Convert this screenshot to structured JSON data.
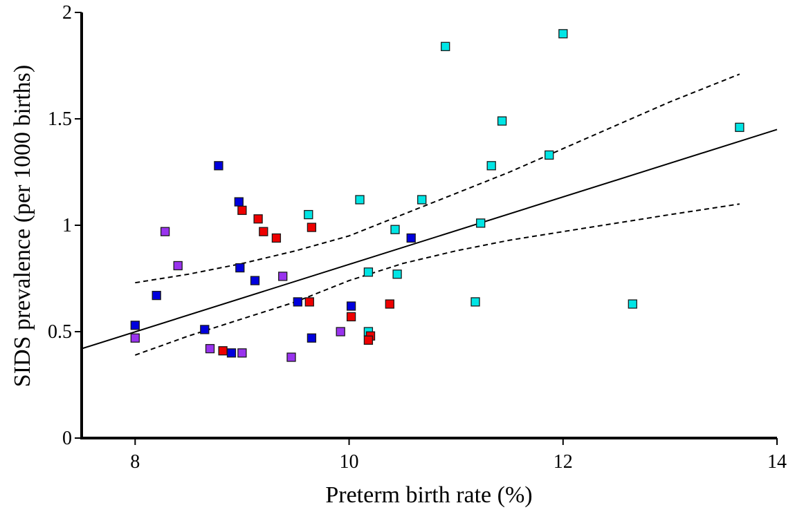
{
  "chart_data": {
    "type": "scatter",
    "title": "",
    "xlabel": "Preterm birth rate (%)",
    "ylabel": "SIDS prevalence (per 1000 births)",
    "xlim": [
      7.5,
      14
    ],
    "ylim": [
      0,
      2
    ],
    "x_ticks": [
      8,
      10,
      12,
      14
    ],
    "x_tick_labels": [
      "8",
      "10",
      "12",
      "14"
    ],
    "y_ticks": [
      0,
      0.5,
      1,
      1.5,
      2
    ],
    "y_tick_labels": [
      "0",
      "0.5",
      "1",
      "1.5",
      "2"
    ],
    "grid": false,
    "legend": "none",
    "series": [
      {
        "color": "#00e5e5",
        "points": [
          [
            10.9,
            1.84
          ],
          [
            12.0,
            1.9
          ],
          [
            11.43,
            1.49
          ],
          [
            13.65,
            1.46
          ],
          [
            11.33,
            1.28
          ],
          [
            11.87,
            1.33
          ],
          [
            10.1,
            1.12
          ],
          [
            10.68,
            1.12
          ],
          [
            9.62,
            1.05
          ],
          [
            11.23,
            1.01
          ],
          [
            10.43,
            0.98
          ],
          [
            10.18,
            0.78
          ],
          [
            10.45,
            0.77
          ],
          [
            11.18,
            0.64
          ],
          [
            12.65,
            0.63
          ],
          [
            10.18,
            0.5
          ]
        ]
      },
      {
        "color": "#0000dd",
        "points": [
          [
            8.78,
            1.28
          ],
          [
            8.97,
            1.11
          ],
          [
            10.58,
            0.94
          ],
          [
            8.98,
            0.8
          ],
          [
            9.12,
            0.74
          ],
          [
            8.2,
            0.67
          ],
          [
            9.52,
            0.64
          ],
          [
            10.02,
            0.62
          ],
          [
            8.0,
            0.53
          ],
          [
            8.65,
            0.51
          ],
          [
            9.65,
            0.47
          ],
          [
            8.9,
            0.4
          ]
        ]
      },
      {
        "color": "#ee0000",
        "points": [
          [
            9.0,
            1.07
          ],
          [
            9.15,
            1.03
          ],
          [
            9.2,
            0.97
          ],
          [
            9.32,
            0.94
          ],
          [
            9.65,
            0.99
          ],
          [
            9.63,
            0.64
          ],
          [
            10.38,
            0.63
          ],
          [
            10.02,
            0.57
          ],
          [
            10.2,
            0.48
          ],
          [
            10.18,
            0.46
          ],
          [
            8.82,
            0.41
          ]
        ]
      },
      {
        "color": "#9933ee",
        "points": [
          [
            8.28,
            0.97
          ],
          [
            8.4,
            0.81
          ],
          [
            9.38,
            0.76
          ],
          [
            9.92,
            0.5
          ],
          [
            8.0,
            0.47
          ],
          [
            8.7,
            0.42
          ],
          [
            9.0,
            0.4
          ],
          [
            9.46,
            0.38
          ]
        ]
      }
    ],
    "fit_line": {
      "x": [
        7.5,
        14
      ],
      "y": [
        0.42,
        1.45
      ]
    },
    "confidence_band": {
      "upper": {
        "x": [
          8.0,
          8.5,
          9.0,
          9.5,
          10.0,
          10.5,
          11.0,
          11.5,
          12.0,
          12.5,
          13.0,
          13.65
        ],
        "y": [
          0.73,
          0.77,
          0.82,
          0.88,
          0.95,
          1.05,
          1.15,
          1.25,
          1.36,
          1.47,
          1.58,
          1.71
        ]
      },
      "lower": {
        "x": [
          8.0,
          8.5,
          9.0,
          9.5,
          10.0,
          10.5,
          11.0,
          11.5,
          12.0,
          12.5,
          13.0,
          13.65
        ],
        "y": [
          0.39,
          0.48,
          0.56,
          0.64,
          0.74,
          0.82,
          0.88,
          0.93,
          0.97,
          1.01,
          1.05,
          1.1
        ]
      }
    }
  }
}
